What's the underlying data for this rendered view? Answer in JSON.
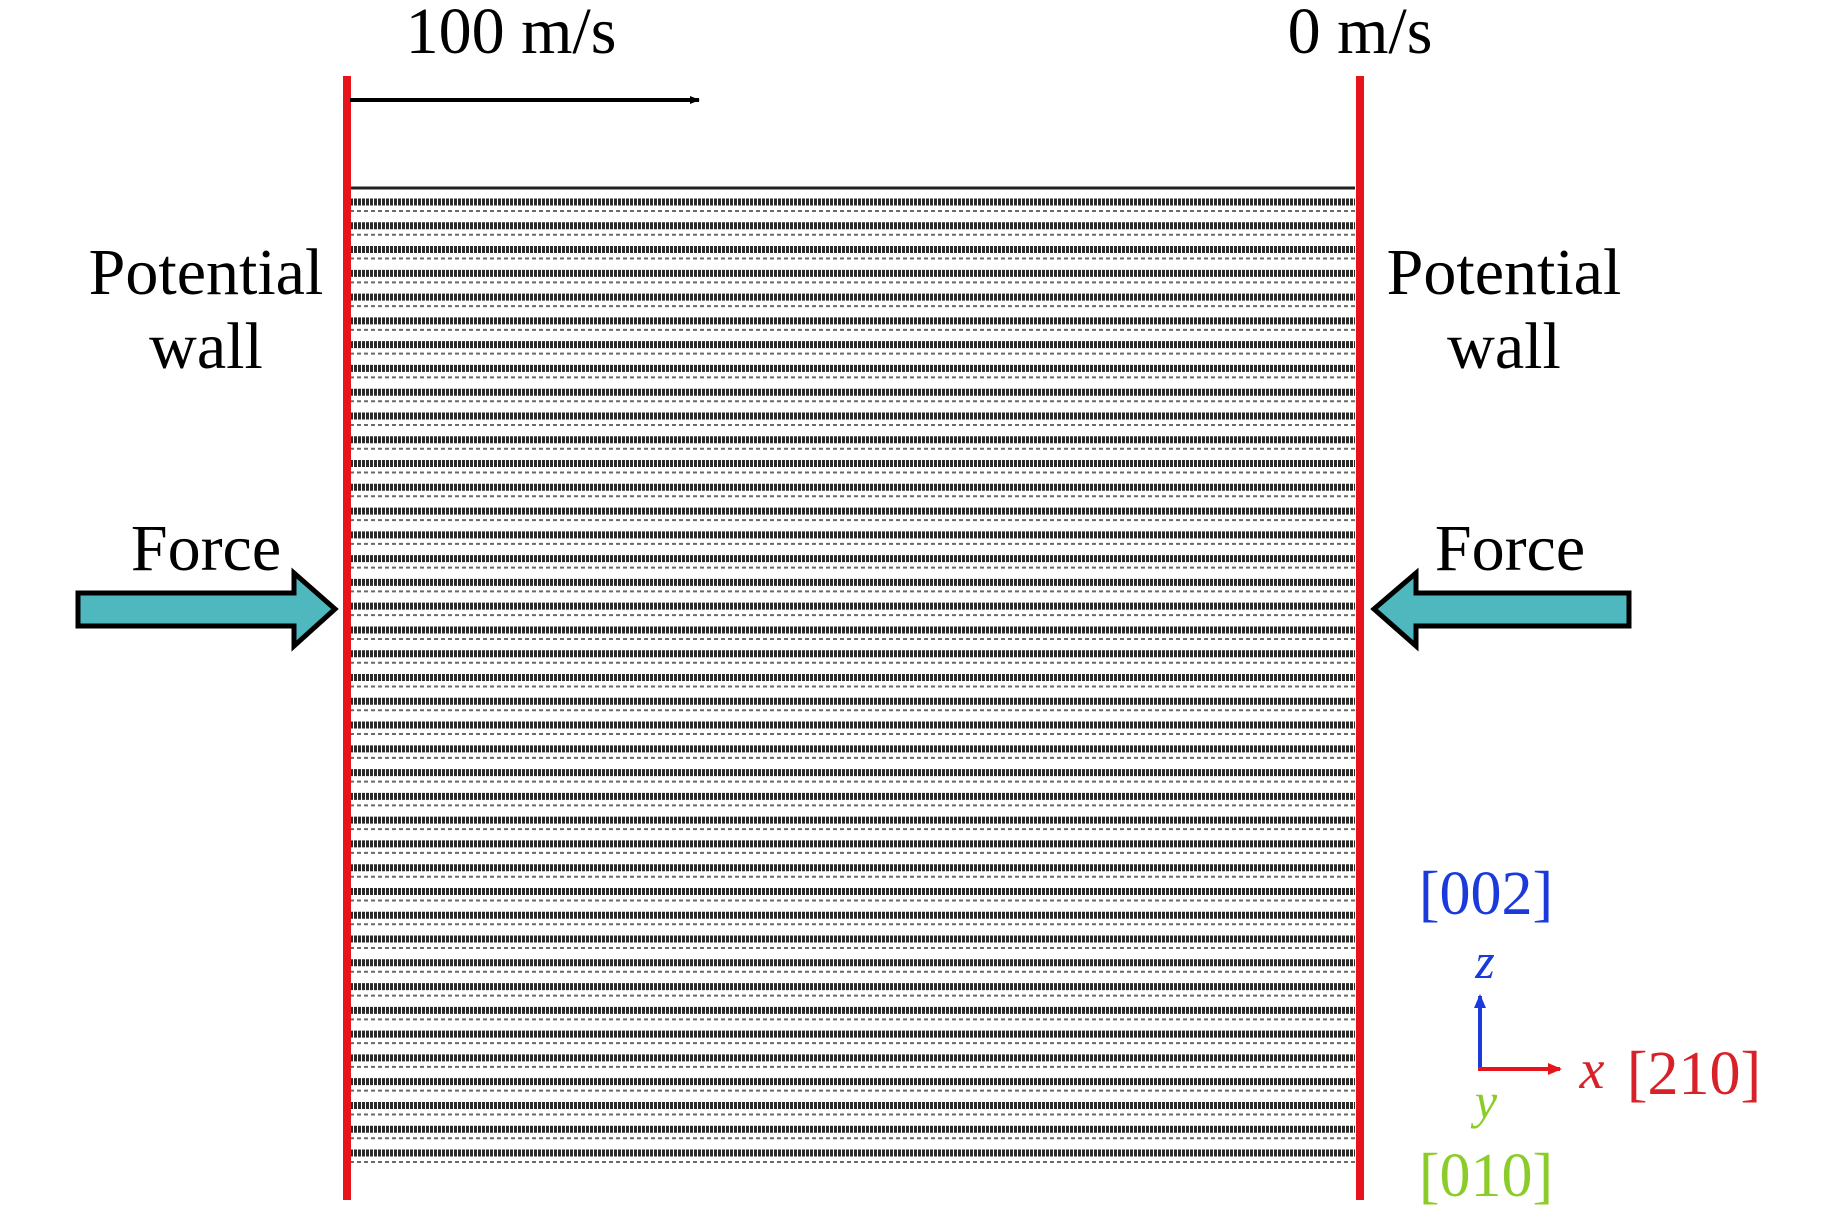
{
  "top_labels": {
    "left_velocity": "100 m/s",
    "right_velocity": "0 m/s"
  },
  "walls": [
    {
      "lines": [
        "Potential",
        "wall"
      ]
    },
    {
      "lines": [
        "Potential",
        "wall"
      ]
    }
  ],
  "forces": [
    "Force",
    "Force"
  ],
  "axes": {
    "z_direction": "[002]",
    "z_label": "z",
    "x_label": "x",
    "x_direction": "[210]",
    "y_label": "y",
    "y_direction": "[010]"
  }
}
